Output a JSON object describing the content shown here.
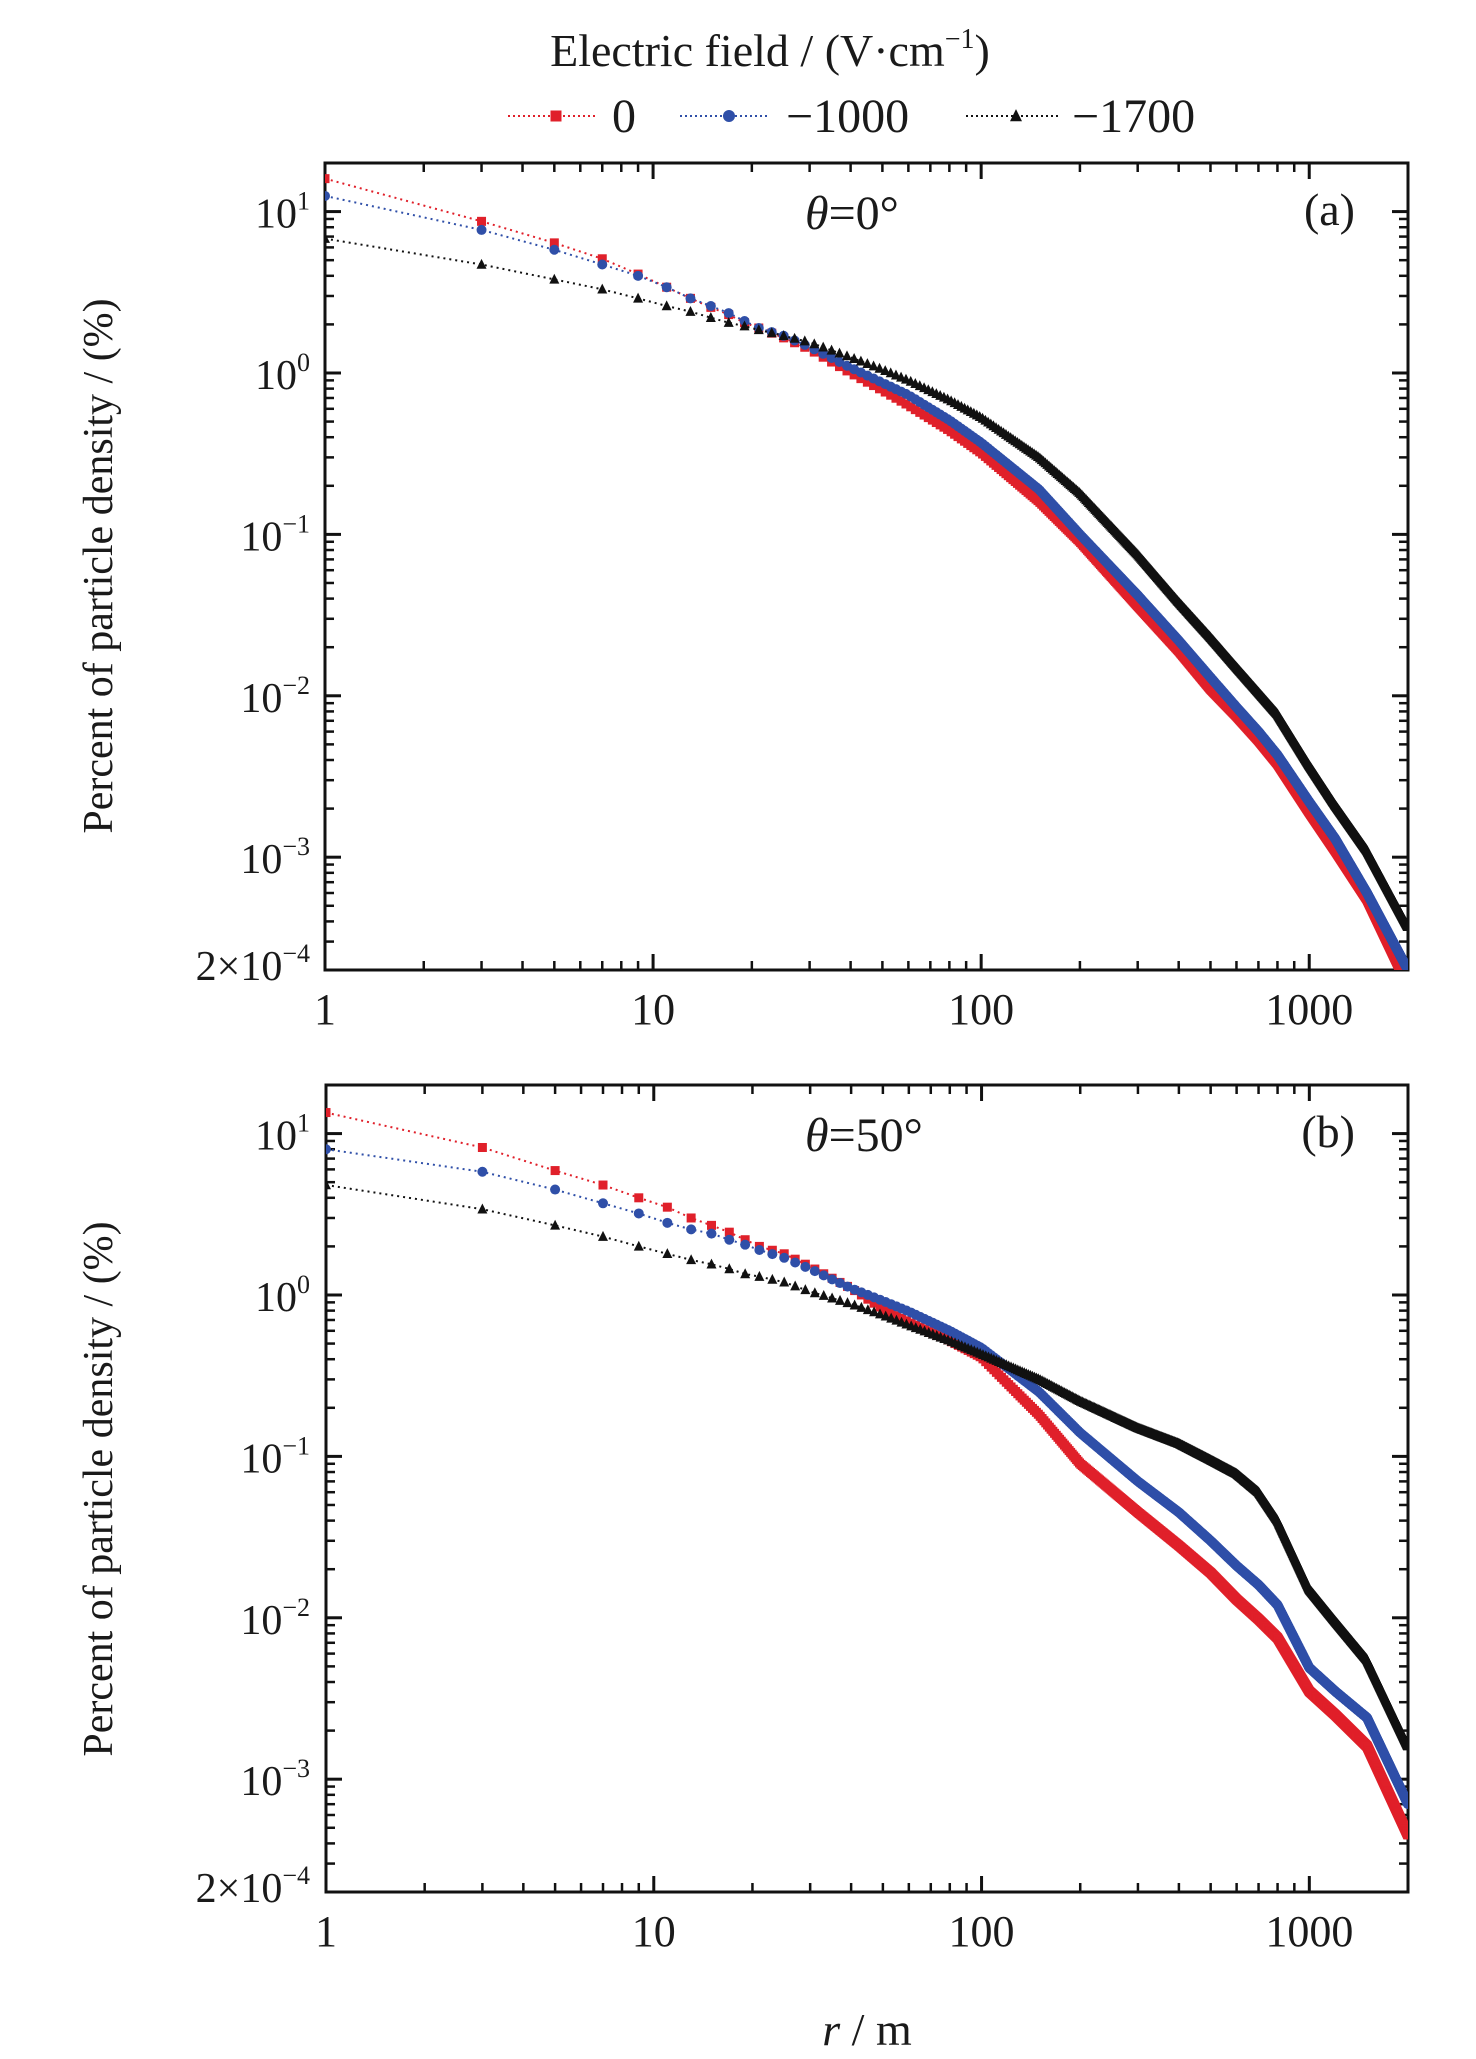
{
  "figure": {
    "legend_title": "Electric field / (V·cm",
    "legend_title_sup": "−1",
    "legend_title_close": ")",
    "xlabel_var": "r",
    "xlabel_unit": " / m",
    "ylabel": "Percent of particle density / (%)"
  },
  "chart_data": [
    {
      "type": "line",
      "panel_label": "(a)",
      "annotation_var": "θ",
      "annotation_value": "=0°",
      "title": "",
      "xlabel": "r / m",
      "ylabel": "Percent of particle density / (%)",
      "xscale": "log",
      "yscale": "log",
      "xlim": [
        1,
        2000
      ],
      "ylim": [
        0.0002,
        20
      ],
      "xticks": [
        {
          "value": 1,
          "label": "1"
        },
        {
          "value": 10,
          "label": "10"
        },
        {
          "value": 100,
          "label": "100"
        },
        {
          "value": 1000,
          "label": "1000"
        }
      ],
      "yticks": [
        {
          "value": 10,
          "base": "10",
          "exp": "1"
        },
        {
          "value": 1,
          "base": "10",
          "exp": "0"
        },
        {
          "value": 0.1,
          "base": "10",
          "exp": "−1"
        },
        {
          "value": 0.01,
          "base": "10",
          "exp": "−2"
        },
        {
          "value": 0.001,
          "base": "10",
          "exp": "−3"
        },
        {
          "value": 0.0002,
          "base": "2×10",
          "exp": "−4"
        }
      ],
      "legend": "top (above panels)",
      "grid": false,
      "series": [
        {
          "name": "0",
          "color": "#e0202a",
          "marker": "square",
          "x": [
            1,
            3,
            5,
            7,
            9,
            11,
            13,
            15,
            17,
            19,
            21,
            25,
            30,
            40,
            50,
            60,
            80,
            100,
            150,
            200,
            300,
            400,
            500,
            600,
            700,
            800,
            1000,
            1200,
            1500,
            1900
          ],
          "y": [
            16,
            8.7,
            6.4,
            5.1,
            4.1,
            3.4,
            2.9,
            2.55,
            2.3,
            2.05,
            1.9,
            1.65,
            1.4,
            1.0,
            0.78,
            0.63,
            0.44,
            0.32,
            0.16,
            0.09,
            0.036,
            0.019,
            0.011,
            0.0075,
            0.0053,
            0.0038,
            0.0019,
            0.0011,
            0.00055,
            0.0002
          ]
        },
        {
          "name": "−1000",
          "color": "#2f4fa8",
          "marker": "circle",
          "x": [
            1,
            3,
            5,
            7,
            9,
            11,
            13,
            15,
            17,
            19,
            21,
            25,
            30,
            40,
            50,
            60,
            80,
            100,
            150,
            200,
            300,
            400,
            500,
            600,
            700,
            800,
            1000,
            1200,
            1500,
            2000
          ],
          "y": [
            12.5,
            7.7,
            5.8,
            4.7,
            4.0,
            3.4,
            2.9,
            2.6,
            2.35,
            2.1,
            1.9,
            1.7,
            1.45,
            1.08,
            0.87,
            0.73,
            0.51,
            0.37,
            0.19,
            0.1,
            0.042,
            0.022,
            0.013,
            0.0085,
            0.006,
            0.0043,
            0.0022,
            0.0013,
            0.0006,
            0.0002
          ]
        },
        {
          "name": "−1700",
          "color": "#111111",
          "marker": "triangle",
          "x": [
            1,
            3,
            5,
            7,
            9,
            11,
            13,
            15,
            17,
            19,
            21,
            25,
            30,
            40,
            50,
            60,
            80,
            100,
            150,
            200,
            300,
            400,
            500,
            600,
            700,
            800,
            1000,
            1200,
            1500,
            2000
          ],
          "y": [
            6.8,
            4.7,
            3.8,
            3.3,
            2.9,
            2.6,
            2.4,
            2.2,
            2.05,
            1.95,
            1.85,
            1.7,
            1.55,
            1.25,
            1.05,
            0.9,
            0.68,
            0.53,
            0.3,
            0.18,
            0.075,
            0.038,
            0.023,
            0.015,
            0.0105,
            0.0077,
            0.0037,
            0.0021,
            0.0011,
            0.00037
          ]
        }
      ]
    },
    {
      "type": "line",
      "panel_label": "(b)",
      "annotation_var": "θ",
      "annotation_value": "=50°",
      "title": "",
      "xlabel": "r / m",
      "ylabel": "Percent of particle density / (%)",
      "xscale": "log",
      "yscale": "log",
      "xlim": [
        1,
        2000
      ],
      "ylim": [
        0.0002,
        20
      ],
      "xticks": [
        {
          "value": 1,
          "label": "1"
        },
        {
          "value": 10,
          "label": "10"
        },
        {
          "value": 100,
          "label": "100"
        },
        {
          "value": 1000,
          "label": "1000"
        }
      ],
      "yticks": [
        {
          "value": 10,
          "base": "10",
          "exp": "1"
        },
        {
          "value": 1,
          "base": "10",
          "exp": "0"
        },
        {
          "value": 0.1,
          "base": "10",
          "exp": "−1"
        },
        {
          "value": 0.01,
          "base": "10",
          "exp": "−2"
        },
        {
          "value": 0.001,
          "base": "10",
          "exp": "−3"
        },
        {
          "value": 0.0002,
          "base": "2×10",
          "exp": "−4"
        }
      ],
      "legend": "top (above panels)",
      "grid": false,
      "series": [
        {
          "name": "0",
          "color": "#e0202a",
          "marker": "square",
          "x": [
            1,
            3,
            5,
            7,
            9,
            11,
            13,
            15,
            17,
            19,
            21,
            25,
            30,
            40,
            50,
            60,
            80,
            100,
            150,
            200,
            300,
            400,
            500,
            600,
            700,
            800,
            1000,
            1200,
            1500,
            2000
          ],
          "y": [
            13.5,
            8.2,
            5.9,
            4.8,
            4.0,
            3.5,
            3.0,
            2.7,
            2.45,
            2.2,
            2.0,
            1.8,
            1.5,
            1.1,
            0.82,
            0.68,
            0.52,
            0.41,
            0.18,
            0.09,
            0.045,
            0.028,
            0.019,
            0.013,
            0.0098,
            0.0075,
            0.0035,
            0.0025,
            0.0016,
            0.00045
          ]
        },
        {
          "name": "−1000",
          "color": "#2f4fa8",
          "marker": "circle",
          "x": [
            1,
            3,
            5,
            7,
            9,
            11,
            13,
            15,
            17,
            19,
            21,
            25,
            30,
            40,
            50,
            60,
            80,
            100,
            150,
            200,
            300,
            400,
            500,
            600,
            700,
            800,
            1000,
            1200,
            1500,
            2000
          ],
          "y": [
            8.0,
            5.8,
            4.5,
            3.7,
            3.2,
            2.8,
            2.55,
            2.4,
            2.2,
            2.05,
            1.9,
            1.7,
            1.45,
            1.1,
            0.92,
            0.79,
            0.6,
            0.47,
            0.25,
            0.14,
            0.07,
            0.045,
            0.03,
            0.021,
            0.016,
            0.012,
            0.0049,
            0.0035,
            0.0024,
            0.0007
          ]
        },
        {
          "name": "−1700",
          "color": "#111111",
          "marker": "triangle",
          "x": [
            1,
            3,
            5,
            7,
            9,
            11,
            13,
            15,
            17,
            19,
            21,
            25,
            30,
            40,
            50,
            60,
            80,
            100,
            150,
            200,
            300,
            400,
            500,
            600,
            700,
            800,
            1000,
            1200,
            1500,
            2000
          ],
          "y": [
            4.8,
            3.4,
            2.7,
            2.3,
            2.0,
            1.8,
            1.65,
            1.55,
            1.45,
            1.35,
            1.3,
            1.2,
            1.05,
            0.88,
            0.75,
            0.65,
            0.52,
            0.43,
            0.3,
            0.22,
            0.15,
            0.12,
            0.095,
            0.078,
            0.06,
            0.04,
            0.015,
            0.0095,
            0.0055,
            0.0016
          ]
        }
      ]
    }
  ]
}
